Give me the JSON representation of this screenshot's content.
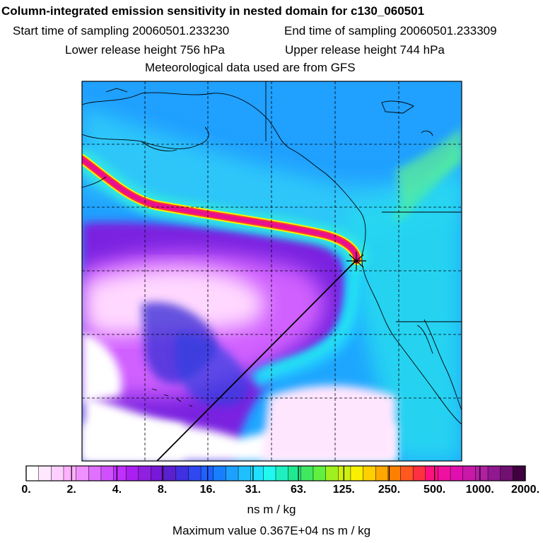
{
  "header": {
    "title": "Column-integrated emission sensitivity in nested domain for c130_060501",
    "start_time": "Start time of sampling 20060501.233230",
    "end_time": "End time of sampling 20060501.233309",
    "lower_release": "Lower release height  756 hPa",
    "upper_release": "Upper release height  744 hPa",
    "met_data": "Meteorological data used are from GFS"
  },
  "colorbar": {
    "tick_labels": [
      "0.",
      "2.",
      "4.",
      "8.",
      "16.",
      "31.",
      "63.",
      "125.",
      "250.",
      "500.",
      "1000.",
      "2000."
    ],
    "colors": [
      "#ffffff",
      "#ffe8ff",
      "#ffd0ff",
      "#ffb0ff",
      "#f090ff",
      "#e070ff",
      "#d050ff",
      "#c030ff",
      "#aa20f0",
      "#9020e0",
      "#7818d8",
      "#5a20d0",
      "#4030e0",
      "#3048f0",
      "#2060ff",
      "#1880ff",
      "#1ea0ff",
      "#20c0ff",
      "#20e0ff",
      "#20f8f0",
      "#20f0c0",
      "#20e890",
      "#40e860",
      "#60f040",
      "#a0f020",
      "#d0f010",
      "#f8f000",
      "#ffd000",
      "#ffa800",
      "#ff8000",
      "#ff5820",
      "#ff3040",
      "#ff1080",
      "#f010a0",
      "#e010b0",
      "#c818a8",
      "#b020a0",
      "#901890",
      "#701070",
      "#400040"
    ],
    "units": "ns m / kg",
    "max_value": "Maximum value  0.367E+04 ns m / kg"
  },
  "map": {
    "release_marker": "receptor-star"
  }
}
